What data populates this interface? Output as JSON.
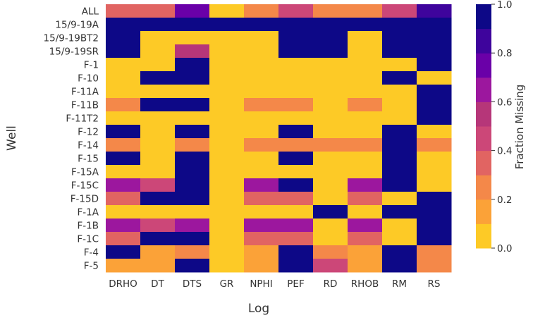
{
  "chart_data": {
    "type": "heatmap",
    "xlabel": "Log",
    "ylabel": "Well",
    "colorbar_label": "Fraction Missing",
    "colorbar_range": [
      0.0,
      1.0
    ],
    "colorbar_ticks": [
      "0.0",
      "0.2",
      "0.4",
      "0.6",
      "0.8",
      "1.0"
    ],
    "colormap": "plasma_r (discrete, 10 levels)",
    "x_categories": [
      "DRHO",
      "DT",
      "DTS",
      "GR",
      "NPHI",
      "PEF",
      "RD",
      "RHOB",
      "RM",
      "RS"
    ],
    "y_categories": [
      "ALL",
      "15/9-19A",
      "15/9-19BT2",
      "15/9-19SR",
      "F-1",
      "F-10",
      "F-11A",
      "F-11B",
      "F-11T2",
      "F-12",
      "F-14",
      "F-15",
      "F-15A",
      "F-15C",
      "F-15D",
      "F-1A",
      "F-1B",
      "F-1C",
      "F-4",
      "F-5"
    ],
    "values": [
      [
        0.35,
        0.35,
        0.75,
        0.0,
        0.25,
        0.45,
        0.2,
        0.2,
        0.45,
        0.8
      ],
      [
        1,
        1,
        1,
        1,
        1,
        1,
        1,
        1,
        1,
        1
      ],
      [
        1,
        0,
        0,
        0,
        0,
        1,
        1,
        0,
        1,
        1
      ],
      [
        1,
        0,
        0.55,
        0,
        0,
        1,
        1,
        0,
        1,
        1
      ],
      [
        0,
        0,
        1,
        0,
        0,
        0,
        0,
        0,
        0,
        1
      ],
      [
        0,
        1,
        1,
        0,
        0,
        0,
        0,
        0,
        1,
        0
      ],
      [
        0,
        0,
        0,
        0,
        0,
        0,
        0,
        0,
        0,
        1
      ],
      [
        0.25,
        1,
        1,
        0,
        0.25,
        0.25,
        0,
        0.25,
        0,
        1
      ],
      [
        0,
        0,
        0,
        0,
        0,
        0,
        0,
        0,
        0,
        1
      ],
      [
        1,
        0,
        1,
        0,
        0,
        1,
        0,
        0,
        1,
        0
      ],
      [
        0.25,
        0,
        0.25,
        0,
        0.25,
        0.25,
        0.25,
        0.25,
        1,
        0.25
      ],
      [
        1,
        0,
        1,
        0,
        0,
        1,
        0,
        0,
        1,
        0
      ],
      [
        0,
        0,
        1,
        0,
        0,
        0,
        0,
        0,
        1,
        0
      ],
      [
        0.6,
        0.45,
        1,
        0,
        0.6,
        1,
        0,
        0.6,
        1,
        0
      ],
      [
        0.35,
        1,
        1,
        0,
        0.35,
        0.35,
        0,
        0.35,
        0,
        1
      ],
      [
        0,
        0,
        0,
        0,
        0,
        0,
        1,
        0,
        1,
        1
      ],
      [
        0.6,
        0.45,
        0.6,
        0,
        0.6,
        0.6,
        0,
        0.6,
        0,
        1
      ],
      [
        0.35,
        1,
        1,
        0,
        0.35,
        0.35,
        0,
        0.35,
        0,
        1
      ],
      [
        1,
        0.15,
        0.25,
        0,
        0.15,
        1,
        0.2,
        0.15,
        1,
        0.2
      ],
      [
        0.15,
        0.15,
        1,
        0,
        0.15,
        1,
        0.45,
        0.15,
        1,
        0.2
      ]
    ]
  }
}
